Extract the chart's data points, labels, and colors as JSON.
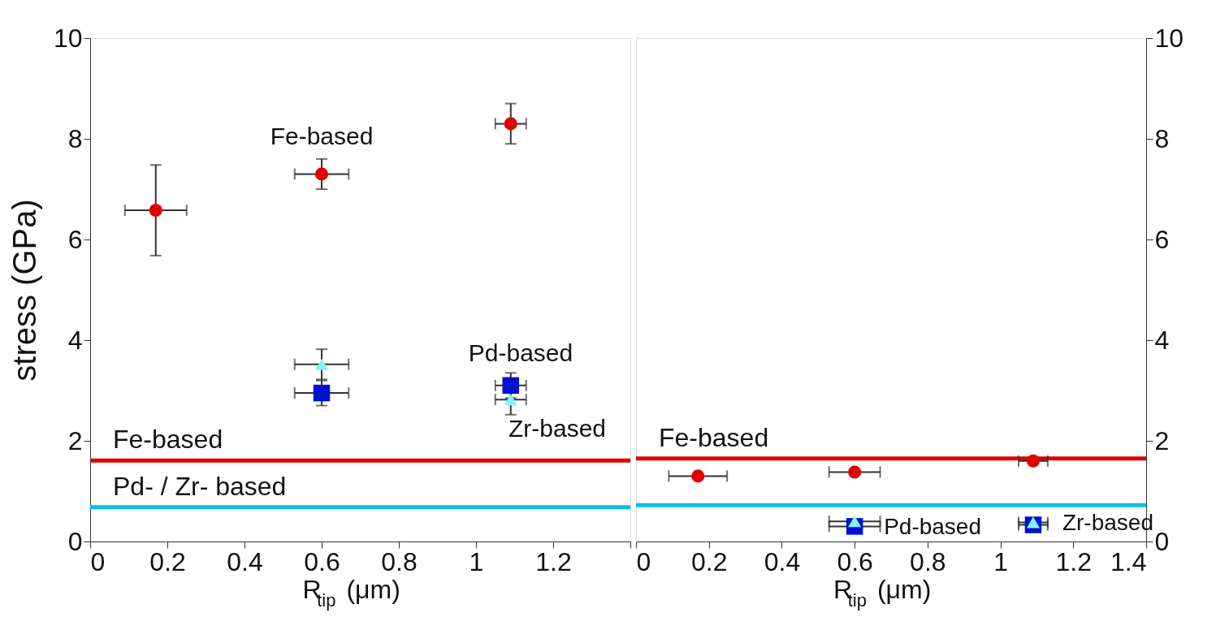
{
  "chart_data": [
    {
      "type": "scatter",
      "ylabel": "stress (GPa)",
      "xlabel": "R$_{tip}$ (μm)",
      "xlim": [
        0,
        1.4
      ],
      "xticks": [
        0,
        0.2,
        0.4,
        0.6,
        0.8,
        1,
        1.2,
        {
          "value": 1.4,
          "label": null
        }
      ],
      "ylim": [
        0,
        10
      ],
      "yticks": [
        0,
        2,
        4,
        6,
        8,
        10
      ],
      "grid": false,
      "legend": false,
      "series": [
        {
          "color": "#e00000",
          "marker": "circle",
          "x": [
            0.17,
            0.6,
            1.09
          ],
          "values": [
            6.58,
            7.3,
            8.3
          ],
          "errors": [
            0.9,
            0.3,
            0.4
          ],
          "xerrors": [
            0.08,
            0.07,
            0.04
          ]
        },
        {
          "color": "#0010d0",
          "marker": "square",
          "x": [
            0.6,
            1.09
          ],
          "values": [
            2.95,
            3.1
          ],
          "errors": [
            0.25,
            0.25
          ],
          "xerrors": [
            0.07,
            0.04
          ]
        },
        {
          "color": "#7ff5f5",
          "marker": "triangle",
          "x": [
            0.6,
            1.09
          ],
          "values": [
            3.52,
            2.82
          ],
          "errors": [
            0.3,
            0.3
          ],
          "xerrors": [
            0.07,
            0.04
          ]
        }
      ],
      "ref_lines": [
        {
          "axis": "y",
          "value": 1.61,
          "label": "Fe-based",
          "color": "#e00000"
        },
        {
          "axis": "y",
          "value": 0.68,
          "label": "Pd- / Zr- based",
          "color": "#00bfef"
        }
      ],
      "annotations": [
        "Fe-based",
        "Pd-based",
        "Zr-based"
      ]
    },
    {
      "type": "scatter",
      "xlabel": "R$_{tip}$ (μm)",
      "xlim": [
        0,
        1.4
      ],
      "xticks": [
        0,
        0.2,
        0.4,
        0.6,
        0.8,
        1,
        1.2,
        1.4
      ],
      "ylim": [
        0,
        10
      ],
      "yticks": [
        0,
        2,
        4,
        6,
        8,
        10
      ],
      "grid": false,
      "legend": false,
      "series": [
        {
          "color": "#e00000",
          "marker": "circle",
          "x": [
            0.17,
            0.6,
            1.09
          ],
          "values": [
            1.3,
            1.38,
            1.6
          ],
          "xerrors": [
            0.08,
            0.07,
            0.04
          ]
        },
        {
          "color": "#0010d0",
          "marker": "square",
          "x": [
            0.6,
            1.09
          ],
          "values": [
            0.3,
            0.33
          ],
          "xerrors": [
            0.07,
            0.04
          ]
        },
        {
          "color": "#7ff5f5",
          "marker": "triangle",
          "x": [
            0.6,
            1.09
          ],
          "values": [
            0.4,
            0.38
          ],
          "xerrors": [
            0.07,
            0.04
          ]
        }
      ],
      "ref_lines": [
        {
          "axis": "y",
          "value": 1.65,
          "label": "Fe-based",
          "color": "#e00000"
        },
        {
          "axis": "y",
          "value": 0.72,
          "label": null,
          "color": "#00bfef"
        }
      ],
      "annotations": [
        {
          "text": "Pd-based",
          "x": 0.6,
          "y": 0.3
        },
        {
          "text": "Zr-based",
          "x": 1.09,
          "y": 0.38
        }
      ]
    }
  ]
}
